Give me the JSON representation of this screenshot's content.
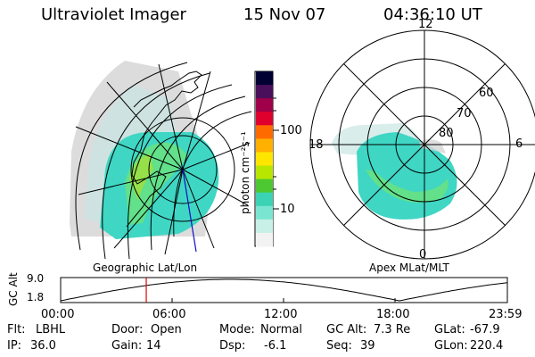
{
  "header": {
    "instrument": "Ultraviolet Imager",
    "date": "15 Nov 07",
    "time": "04:36:10 UT"
  },
  "colorbar": {
    "label": "photon cm⁻²s⁻¹",
    "ticks": [
      "100",
      "10"
    ],
    "colors": [
      "#000033",
      "#4a0f5a",
      "#a0004a",
      "#e0002e",
      "#ff6a00",
      "#ffb000",
      "#ffe600",
      "#b8e600",
      "#4ec832",
      "#3cd2b4",
      "#7ae6d2",
      "#c8f0e6",
      "#f2f2f2"
    ]
  },
  "left_map": {
    "caption": "Geographic Lat/Lon",
    "aurora_colors": [
      "#3fd6c4",
      "#62e08a",
      "#96e04a",
      "#d0d0d0"
    ]
  },
  "right_map": {
    "caption": "Apex MLat/MLT",
    "hour_labels": {
      "top": "12",
      "right": "6",
      "bottom": "0",
      "left": "18"
    },
    "lat_labels": [
      "60",
      "70",
      "80"
    ]
  },
  "altitude_plot": {
    "ylabel": "GC Alt",
    "yticks": [
      "9.0",
      "1.8"
    ],
    "xticks": [
      "00:00",
      "06:00",
      "12:00",
      "18:00",
      "23:59"
    ],
    "current_time_hours": 4.6,
    "marker_color": "#e00000"
  },
  "status": {
    "row1": [
      {
        "key": "Flt:",
        "value": "LBHL"
      },
      {
        "key": "Door:",
        "value": "Open"
      },
      {
        "key": "Mode:",
        "value": "Normal"
      },
      {
        "key": "GC Alt:",
        "value": "7.3 Re"
      },
      {
        "key": "GLat:",
        "value": "-67.9"
      }
    ],
    "row2": [
      {
        "key": "IP:",
        "value": "36.0"
      },
      {
        "key": "Gain:",
        "value": "14"
      },
      {
        "key": "Dsp:",
        "value": "-6.1"
      },
      {
        "key": "Seq:",
        "value": "39"
      },
      {
        "key": "GLon:",
        "value": "220.4"
      }
    ]
  }
}
